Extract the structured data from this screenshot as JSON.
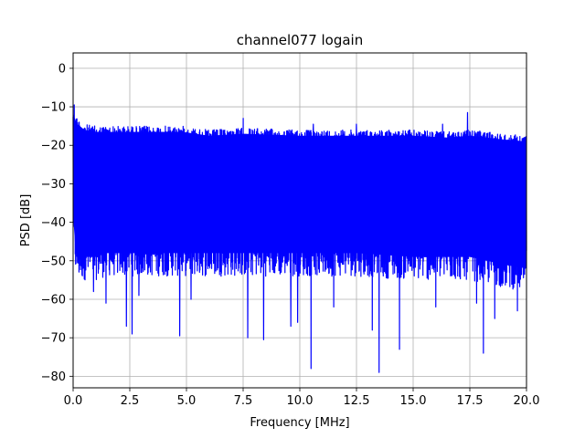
{
  "chart_data": {
    "type": "line",
    "title": "channel077 logain",
    "xlabel": "Frequency [MHz]",
    "ylabel": "PSD [dB]",
    "xlim": [
      0.0,
      20.0
    ],
    "ylim": [
      -83,
      4
    ],
    "xticks": [
      0.0,
      2.5,
      5.0,
      7.5,
      10.0,
      12.5,
      15.0,
      17.5,
      20.0
    ],
    "xtick_labels": [
      "0.0",
      "2.5",
      "5.0",
      "7.5",
      "10.0",
      "12.5",
      "15.0",
      "17.5",
      "20.0"
    ],
    "yticks": [
      0,
      -10,
      -20,
      -30,
      -40,
      -50,
      -60,
      -70,
      -80
    ],
    "ytick_labels": [
      "0",
      "−10",
      "−20",
      "−30",
      "−40",
      "−50",
      "−60",
      "−70",
      "−80"
    ],
    "grid": true,
    "series": [
      {
        "color": "#0000ff",
        "envelope": {
          "x": [
            0.0,
            0.1,
            0.2,
            0.5,
            1.0,
            1.5,
            2.5,
            3.5,
            4.8,
            6.0,
            7.5,
            10.0,
            12.5,
            15.0,
            16.5,
            17.5,
            19.0,
            20.0
          ],
          "upper": [
            -10,
            -12,
            -13,
            -14.5,
            -15,
            -15,
            -15,
            -15,
            -15,
            -16,
            -15.5,
            -16,
            -16,
            -16,
            -16.5,
            -16,
            -17,
            -17.5
          ],
          "lower_typical": [
            -44,
            -53,
            -55,
            -55,
            -55,
            -54,
            -54,
            -54,
            -54,
            -54,
            -54,
            -54,
            -54,
            -55,
            -55,
            -55,
            -57,
            -58
          ]
        },
        "dips": [
          {
            "x": 0.9,
            "y": -58
          },
          {
            "x": 1.45,
            "y": -61
          },
          {
            "x": 2.35,
            "y": -67
          },
          {
            "x": 2.6,
            "y": -69
          },
          {
            "x": 2.9,
            "y": -59
          },
          {
            "x": 4.7,
            "y": -69.5
          },
          {
            "x": 5.2,
            "y": -60
          },
          {
            "x": 7.7,
            "y": -70
          },
          {
            "x": 8.4,
            "y": -70.5
          },
          {
            "x": 9.6,
            "y": -67
          },
          {
            "x": 9.9,
            "y": -66
          },
          {
            "x": 10.5,
            "y": -78
          },
          {
            "x": 11.5,
            "y": -62
          },
          {
            "x": 13.2,
            "y": -68
          },
          {
            "x": 13.5,
            "y": -79
          },
          {
            "x": 14.4,
            "y": -73
          },
          {
            "x": 16.0,
            "y": -62
          },
          {
            "x": 17.8,
            "y": -61
          },
          {
            "x": 18.1,
            "y": -74
          },
          {
            "x": 18.6,
            "y": -65
          },
          {
            "x": 19.6,
            "y": -63
          }
        ],
        "peaks": [
          {
            "x": 0.05,
            "y": -9.5
          },
          {
            "x": 7.5,
            "y": -13
          },
          {
            "x": 10.6,
            "y": -14.5
          },
          {
            "x": 12.5,
            "y": -14.5
          },
          {
            "x": 16.3,
            "y": -14.5
          },
          {
            "x": 17.4,
            "y": -11.5
          }
        ]
      }
    ]
  }
}
